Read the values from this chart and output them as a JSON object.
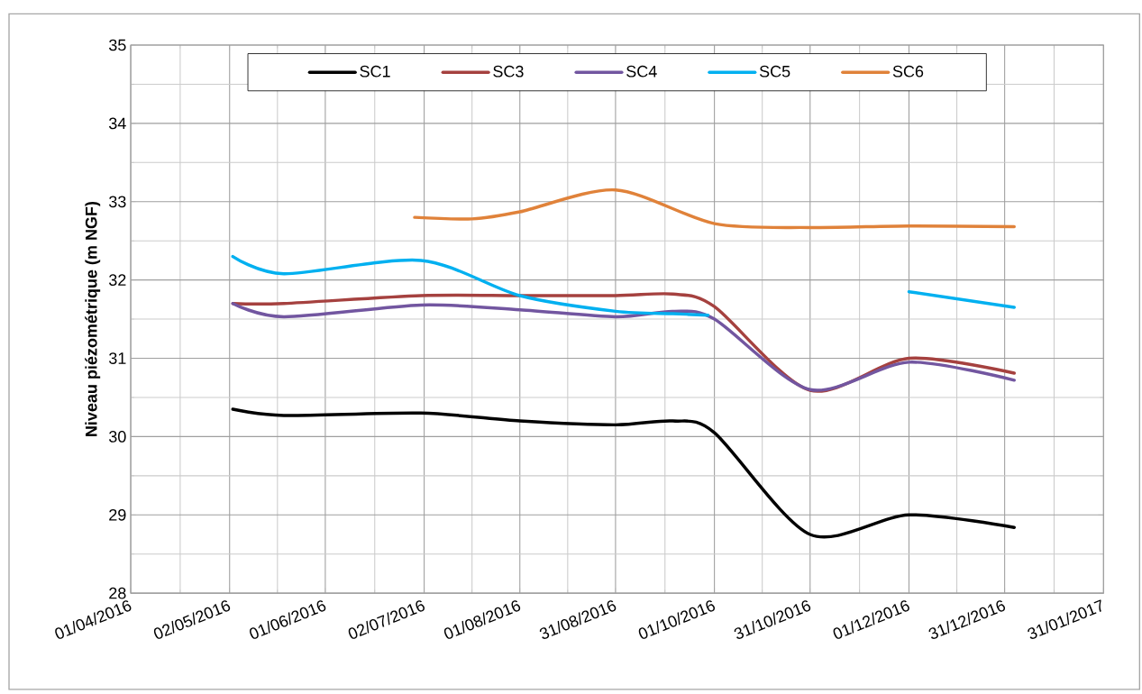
{
  "chart_data": {
    "type": "line",
    "ylabel": "Niveau piézométrique (m NGF)",
    "xlim": [
      "2016-04-01",
      "2017-01-31"
    ],
    "xticks": [
      {
        "value": "2016-04-01",
        "label": "01/04/2016"
      },
      {
        "value": "2016-05-02",
        "label": "02/05/2016"
      },
      {
        "value": "2016-06-01",
        "label": "01/06/2016"
      },
      {
        "value": "2016-07-02",
        "label": "02/07/2016"
      },
      {
        "value": "2016-08-01",
        "label": "01/08/2016"
      },
      {
        "value": "2016-08-31",
        "label": "31/08/2016"
      },
      {
        "value": "2016-10-01",
        "label": "01/10/2016"
      },
      {
        "value": "2016-10-31",
        "label": "31/10/2016"
      },
      {
        "value": "2016-12-01",
        "label": "01/12/2016"
      },
      {
        "value": "2016-12-31",
        "label": "31/12/2016"
      },
      {
        "value": "2017-01-31",
        "label": "31/01/2017"
      }
    ],
    "ylim": [
      28,
      35
    ],
    "yticks": [
      28,
      29,
      30,
      31,
      32,
      33,
      34,
      35
    ],
    "grid": true,
    "legend": "top",
    "marker": "none",
    "line_style": "solid",
    "series": [
      {
        "name": "SC1",
        "color": "#000000",
        "x": [
          "2016-05-03",
          "2016-05-19",
          "2016-07-01",
          "2016-08-01",
          "2016-08-31",
          "2016-09-18",
          "2016-10-01",
          "2016-10-31",
          "2016-12-01",
          "2017-01-03"
        ],
        "values": [
          30.35,
          30.27,
          30.3,
          30.2,
          30.15,
          30.2,
          30.05,
          28.75,
          29.0,
          28.84
        ]
      },
      {
        "name": "SC3",
        "color": "#a5413f",
        "x": [
          "2016-05-03",
          "2016-05-19",
          "2016-07-01",
          "2016-08-01",
          "2016-08-31",
          "2016-09-18",
          "2016-10-01",
          "2016-10-31",
          "2016-12-01",
          "2017-01-03"
        ],
        "values": [
          31.7,
          31.7,
          31.8,
          31.8,
          31.8,
          31.82,
          31.66,
          30.59,
          31.0,
          30.81
        ]
      },
      {
        "name": "SC4",
        "color": "#7256a0",
        "x": [
          "2016-05-03",
          "2016-05-19",
          "2016-07-01",
          "2016-08-01",
          "2016-08-31",
          "2016-09-18",
          "2016-10-01",
          "2016-10-31",
          "2016-12-01",
          "2017-01-03"
        ],
        "values": [
          31.7,
          31.53,
          31.68,
          31.62,
          31.53,
          31.6,
          31.5,
          30.6,
          30.95,
          30.72
        ]
      },
      {
        "name": "SC5",
        "color": "#00b0f0",
        "x": [
          "2016-05-03",
          "2016-05-19",
          "2016-07-01",
          "2016-08-01",
          "2016-08-31",
          "2016-09-18",
          "2016-09-29",
          "2016-10-31",
          "2016-12-01",
          "2017-01-03"
        ],
        "values": [
          32.3,
          32.08,
          32.25,
          31.8,
          31.6,
          31.57,
          31.55,
          null,
          31.85,
          31.65
        ]
      },
      {
        "name": "SC6",
        "color": "#e0823a",
        "x": [
          "2016-06-29",
          "2016-07-17",
          "2016-08-01",
          "2016-08-31",
          "2016-10-01",
          "2016-10-31",
          "2016-12-01",
          "2017-01-03"
        ],
        "values": [
          32.8,
          32.78,
          32.87,
          33.15,
          32.72,
          32.67,
          32.69,
          32.68
        ]
      }
    ]
  }
}
